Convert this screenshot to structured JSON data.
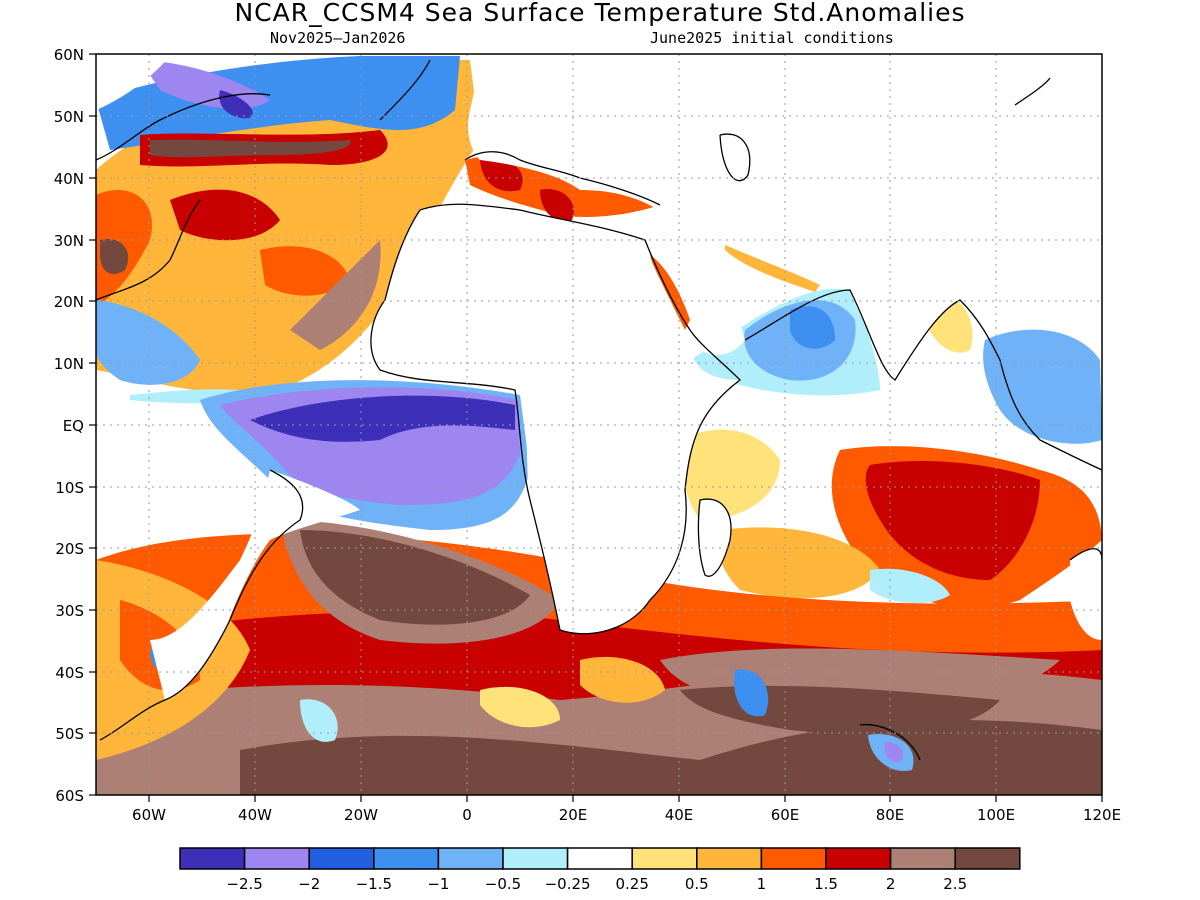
{
  "header": {
    "title": "NCAR_CCSM4 Sea Surface Temperature Std.Anomalies",
    "period": "Nov2025–Jan2026",
    "init": "June2025 initial conditions"
  },
  "map": {
    "lat_range": [
      -60,
      60
    ],
    "lon_range": [
      -70,
      120
    ],
    "lat_ticks": [
      "60N",
      "50N",
      "40N",
      "30N",
      "20N",
      "10N",
      "EQ",
      "10S",
      "20S",
      "30S",
      "40S",
      "50S",
      "60S"
    ],
    "lon_ticks": [
      "60W",
      "40W",
      "20W",
      "0",
      "20E",
      "40E",
      "60E",
      "80E",
      "100E",
      "120E"
    ],
    "grid": "dotted",
    "land_color": "#ffffff"
  },
  "colorbar": {
    "colors": [
      "#3d2fb8",
      "#9d86f0",
      "#1f5fe0",
      "#3d8ff0",
      "#70b2f8",
      "#b0eefc",
      "#ffffff",
      "#ffe27a",
      "#ffb63a",
      "#ff5a00",
      "#c80000",
      "#ad8075",
      "#73493f"
    ],
    "labels": [
      "−2.5",
      "−2",
      "−1.5",
      "−1",
      "−0.5",
      "−0.25",
      "0.25",
      "0.5",
      "1",
      "1.5",
      "2",
      "2.5"
    ]
  }
}
